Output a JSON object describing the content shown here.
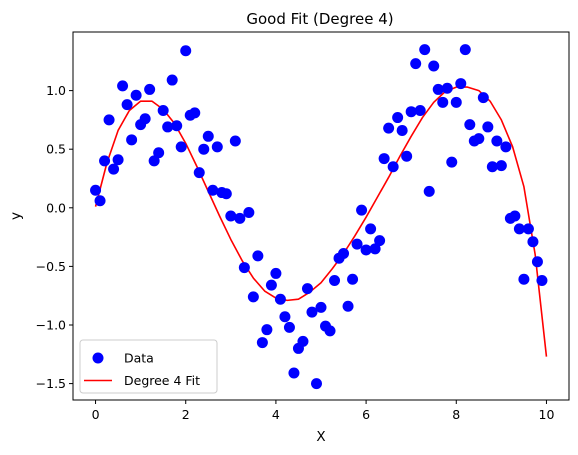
{
  "chart_data": {
    "type": "scatter",
    "title": "Good Fit (Degree 4)",
    "xlabel": "X",
    "ylabel": "y",
    "xlim": [
      -0.5,
      10.5
    ],
    "ylim": [
      -1.64,
      1.5
    ],
    "xticks": [
      0,
      2,
      4,
      6,
      8,
      10
    ],
    "xtick_labels": [
      "0",
      "2",
      "4",
      "6",
      "8",
      "10"
    ],
    "yticks": [
      -1.5,
      -1.0,
      -0.5,
      0.0,
      0.5,
      1.0
    ],
    "ytick_labels": [
      "−1.5",
      "−1.0",
      "−0.5",
      "0.0",
      "0.5",
      "1.0"
    ],
    "grid": false,
    "legend_position": "lower-left",
    "series": [
      {
        "name": "Data",
        "kind": "scatter",
        "color": "#0000ff",
        "points": [
          [
            0.0,
            0.15
          ],
          [
            0.1,
            0.06
          ],
          [
            0.2,
            0.4
          ],
          [
            0.3,
            0.75
          ],
          [
            0.4,
            0.33
          ],
          [
            0.5,
            0.41
          ],
          [
            0.6,
            1.04
          ],
          [
            0.7,
            0.88
          ],
          [
            0.8,
            0.58
          ],
          [
            0.9,
            0.96
          ],
          [
            1.0,
            0.71
          ],
          [
            1.1,
            0.76
          ],
          [
            1.2,
            1.01
          ],
          [
            1.3,
            0.4
          ],
          [
            1.4,
            0.47
          ],
          [
            1.5,
            0.83
          ],
          [
            1.6,
            0.69
          ],
          [
            1.7,
            1.09
          ],
          [
            1.8,
            0.7
          ],
          [
            1.9,
            0.52
          ],
          [
            2.0,
            1.34
          ],
          [
            2.1,
            0.79
          ],
          [
            2.2,
            0.81
          ],
          [
            2.3,
            0.3
          ],
          [
            2.4,
            0.5
          ],
          [
            2.5,
            0.61
          ],
          [
            2.6,
            0.15
          ],
          [
            2.7,
            0.52
          ],
          [
            2.8,
            0.13
          ],
          [
            2.9,
            0.12
          ],
          [
            3.0,
            -0.07
          ],
          [
            3.1,
            0.57
          ],
          [
            3.2,
            -0.09
          ],
          [
            3.3,
            -0.51
          ],
          [
            3.4,
            -0.04
          ],
          [
            3.5,
            -0.76
          ],
          [
            3.6,
            -0.41
          ],
          [
            3.7,
            -1.15
          ],
          [
            3.8,
            -1.04
          ],
          [
            3.9,
            -0.66
          ],
          [
            4.0,
            -0.56
          ],
          [
            4.1,
            -0.78
          ],
          [
            4.2,
            -0.93
          ],
          [
            4.3,
            -1.02
          ],
          [
            4.4,
            -1.41
          ],
          [
            4.5,
            -1.2
          ],
          [
            4.6,
            -1.14
          ],
          [
            4.7,
            -0.69
          ],
          [
            4.8,
            -0.89
          ],
          [
            4.9,
            -1.5
          ],
          [
            5.0,
            -0.85
          ],
          [
            5.1,
            -1.01
          ],
          [
            5.2,
            -1.05
          ],
          [
            5.3,
            -0.62
          ],
          [
            5.4,
            -0.43
          ],
          [
            5.5,
            -0.39
          ],
          [
            5.6,
            -0.84
          ],
          [
            5.7,
            -0.61
          ],
          [
            5.8,
            -0.31
          ],
          [
            5.9,
            -0.02
          ],
          [
            6.0,
            -0.36
          ],
          [
            6.1,
            -0.18
          ],
          [
            6.2,
            -0.35
          ],
          [
            6.3,
            -0.28
          ],
          [
            6.4,
            0.42
          ],
          [
            6.5,
            0.68
          ],
          [
            6.6,
            0.35
          ],
          [
            6.7,
            0.77
          ],
          [
            6.8,
            0.66
          ],
          [
            6.9,
            0.44
          ],
          [
            7.0,
            0.82
          ],
          [
            7.1,
            1.23
          ],
          [
            7.2,
            0.83
          ],
          [
            7.3,
            1.35
          ],
          [
            7.4,
            0.14
          ],
          [
            7.5,
            1.21
          ],
          [
            7.6,
            1.01
          ],
          [
            7.7,
            0.9
          ],
          [
            7.8,
            1.02
          ],
          [
            7.9,
            0.39
          ],
          [
            8.0,
            0.9
          ],
          [
            8.1,
            1.06
          ],
          [
            8.2,
            1.35
          ],
          [
            8.3,
            0.71
          ],
          [
            8.4,
            0.57
          ],
          [
            8.5,
            0.59
          ],
          [
            8.6,
            0.94
          ],
          [
            8.7,
            0.69
          ],
          [
            8.8,
            0.35
          ],
          [
            8.9,
            0.57
          ],
          [
            9.0,
            0.36
          ],
          [
            9.1,
            0.52
          ],
          [
            9.2,
            -0.09
          ],
          [
            9.3,
            -0.07
          ],
          [
            9.4,
            -0.18
          ],
          [
            9.5,
            -0.61
          ],
          [
            9.6,
            -0.18
          ],
          [
            9.7,
            -0.29
          ],
          [
            9.8,
            -0.46
          ],
          [
            9.9,
            -0.62
          ]
        ]
      },
      {
        "name": "Degree 4 Fit",
        "kind": "line",
        "color": "#ff0000",
        "points": [
          [
            0.0,
            0.01
          ],
          [
            0.25,
            0.38
          ],
          [
            0.5,
            0.66
          ],
          [
            0.75,
            0.83
          ],
          [
            1.0,
            0.91
          ],
          [
            1.25,
            0.91
          ],
          [
            1.5,
            0.84
          ],
          [
            1.75,
            0.72
          ],
          [
            2.0,
            0.55
          ],
          [
            2.25,
            0.35
          ],
          [
            2.5,
            0.14
          ],
          [
            2.75,
            -0.07
          ],
          [
            3.0,
            -0.27
          ],
          [
            3.25,
            -0.45
          ],
          [
            3.5,
            -0.6
          ],
          [
            3.75,
            -0.71
          ],
          [
            4.0,
            -0.77
          ],
          [
            4.25,
            -0.79
          ],
          [
            4.5,
            -0.78
          ],
          [
            4.75,
            -0.72
          ],
          [
            5.0,
            -0.64
          ],
          [
            5.25,
            -0.52
          ],
          [
            5.5,
            -0.39
          ],
          [
            5.75,
            -0.24
          ],
          [
            6.0,
            -0.08
          ],
          [
            6.25,
            0.09
          ],
          [
            6.5,
            0.26
          ],
          [
            6.75,
            0.44
          ],
          [
            7.0,
            0.61
          ],
          [
            7.25,
            0.77
          ],
          [
            7.5,
            0.9
          ],
          [
            7.75,
            0.99
          ],
          [
            8.0,
            1.03
          ],
          [
            8.25,
            1.03
          ],
          [
            8.5,
            1.0
          ],
          [
            8.75,
            0.91
          ],
          [
            9.0,
            0.75
          ],
          [
            9.25,
            0.52
          ],
          [
            9.5,
            0.18
          ],
          [
            9.75,
            -0.4
          ],
          [
            10.0,
            -1.27
          ]
        ]
      }
    ]
  }
}
